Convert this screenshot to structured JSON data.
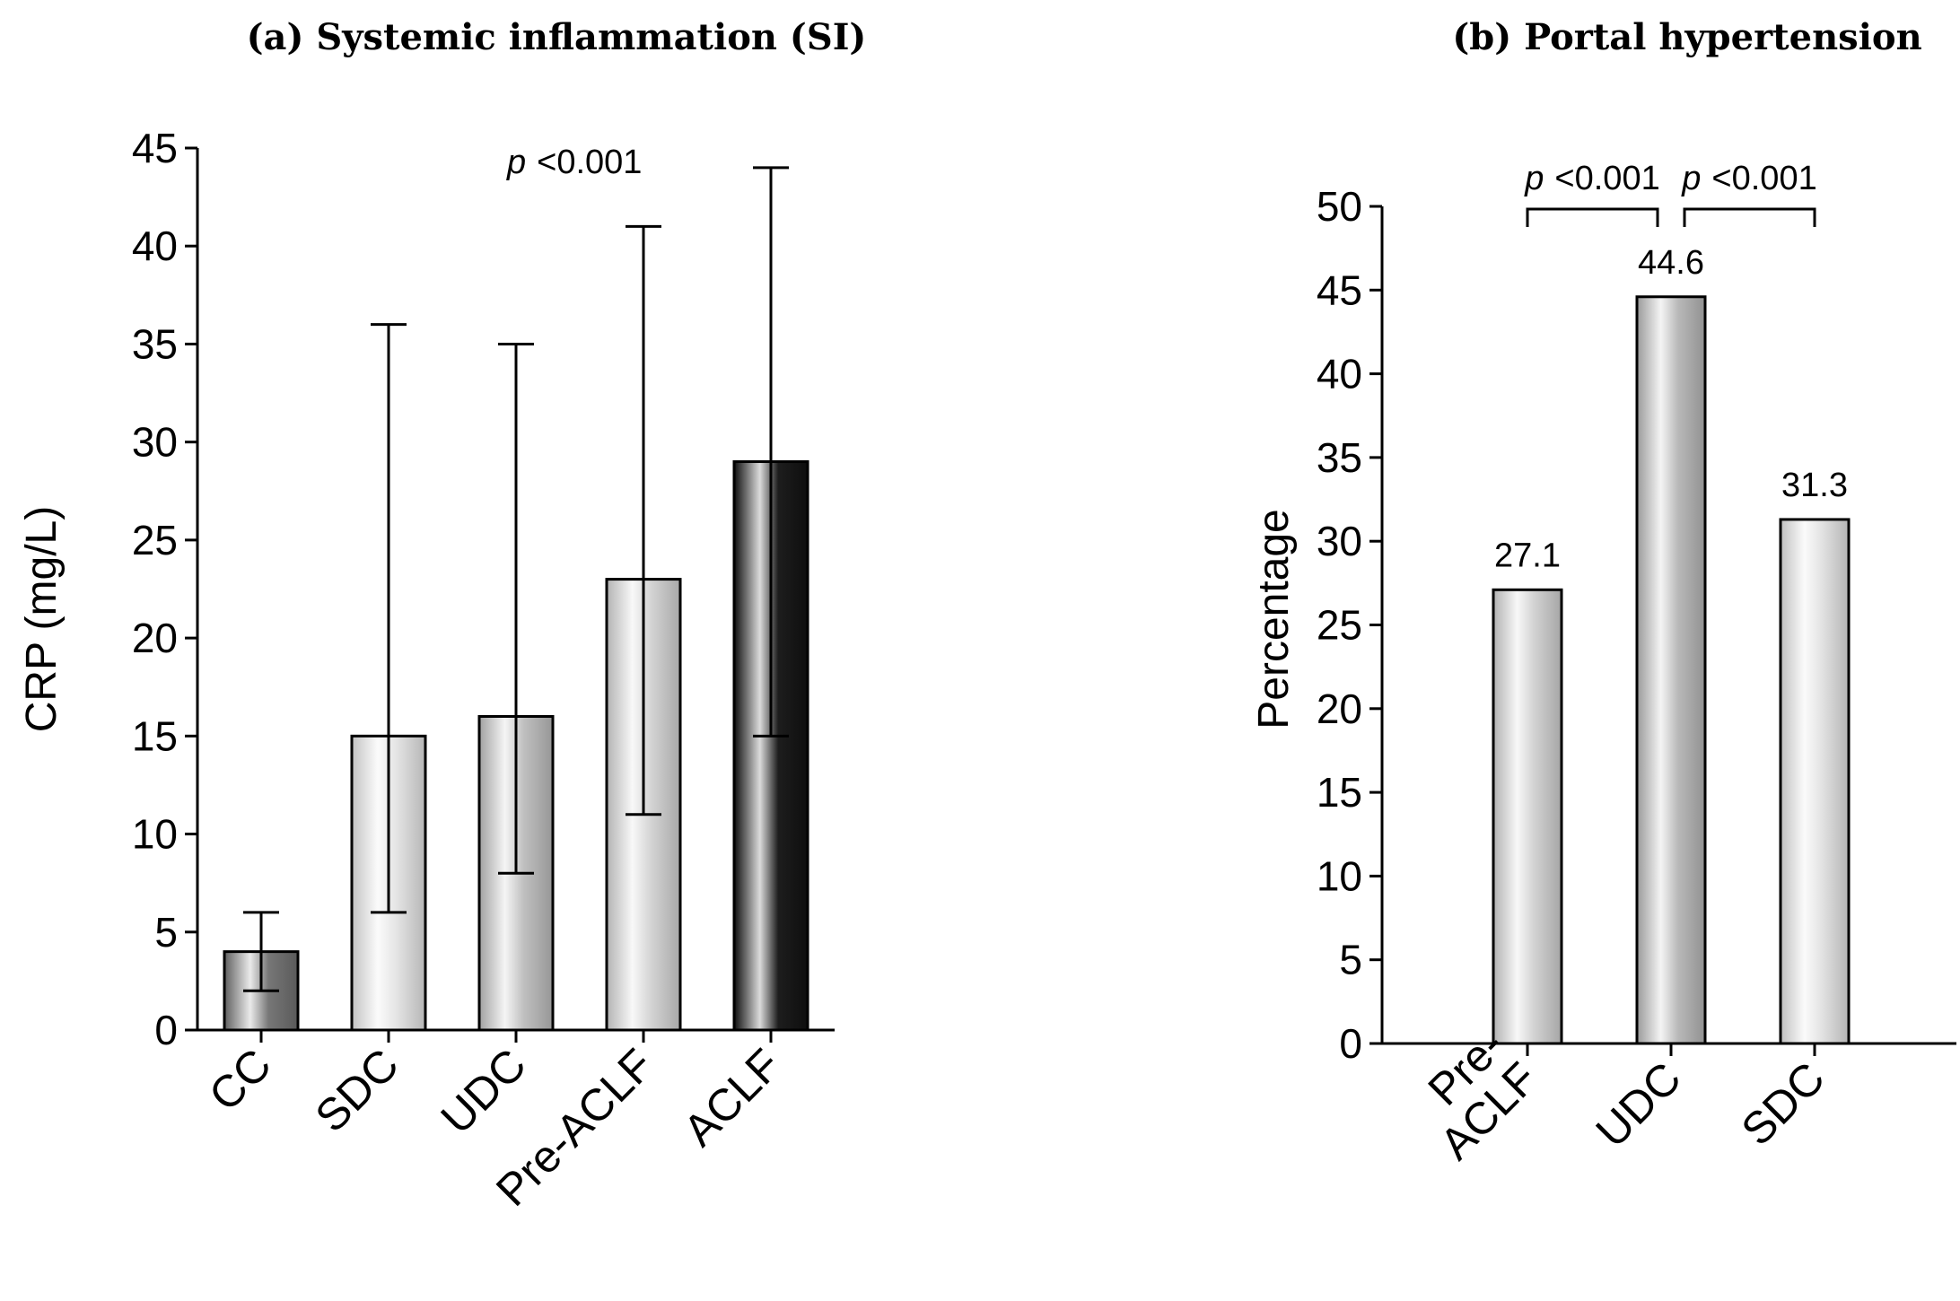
{
  "chart_data": [
    {
      "type": "bar",
      "title": "(a) Systemic inflammation (SI)",
      "xlabel": "",
      "ylabel": "CRP (mg/L)",
      "ylim": [
        0,
        45
      ],
      "yticks": [
        0,
        5,
        10,
        15,
        20,
        25,
        30,
        35,
        40,
        45
      ],
      "categories": [
        "CC",
        "SDC",
        "UDC",
        "Pre-ACLF",
        "ACLF"
      ],
      "values": [
        4,
        15,
        16,
        23,
        29
      ],
      "error_low": [
        2,
        6,
        8,
        11,
        15
      ],
      "error_high": [
        6,
        36,
        35,
        41,
        44
      ],
      "annotation": {
        "p_label": "p",
        "p_value": "<0.001"
      },
      "colors": [
        "#707070",
        "#e4e4e4",
        "#bdbdbd",
        "#d2d2d2",
        "#111111"
      ]
    },
    {
      "type": "bar",
      "title": "(b) Portal hypertension",
      "xlabel": "",
      "ylabel": "Percentage",
      "ylim": [
        0,
        50
      ],
      "yticks": [
        0,
        5,
        10,
        15,
        20,
        25,
        30,
        35,
        40,
        45,
        50
      ],
      "categories": [
        "Pre-ACLF",
        "UDC",
        "SDC"
      ],
      "category_lines": [
        [
          "Pre-",
          "ACLF"
        ],
        [
          "UDC"
        ],
        [
          "SDC"
        ]
      ],
      "values": [
        27.1,
        44.6,
        31.3
      ],
      "value_labels": [
        "27.1",
        "44.6",
        "31.3"
      ],
      "comparisons": [
        {
          "from": 0,
          "to": 1,
          "p_label": "p",
          "p_value": "<0.001"
        },
        {
          "from": 1,
          "to": 2,
          "p_label": "p",
          "p_value": "<0.001"
        }
      ],
      "colors": [
        "#d0d0d0",
        "#b5b5b5",
        "#e2e2e2"
      ]
    }
  ]
}
